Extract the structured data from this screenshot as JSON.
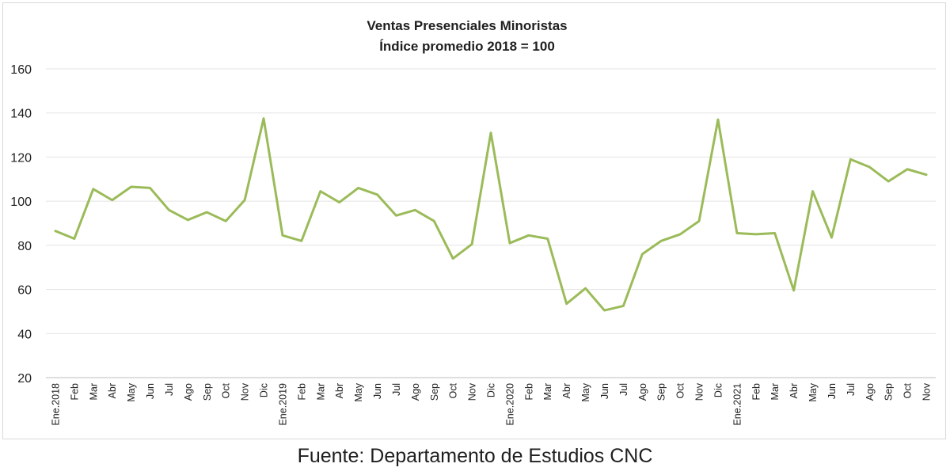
{
  "chart_data": {
    "type": "line",
    "title": "Ventas Presenciales Minoristas",
    "subtitle": "Índice promedio 2018 = 100",
    "xlabel": "",
    "ylabel": "",
    "ylim": [
      20,
      160
    ],
    "yticks": [
      20,
      40,
      60,
      80,
      100,
      120,
      140,
      160
    ],
    "grid": true,
    "legend": "none",
    "categories": [
      "Ene.2018",
      "Feb",
      "Mar",
      "Abr",
      "May",
      "Jun",
      "Jul",
      "Ago",
      "Sep",
      "Oct",
      "Nov",
      "Dic",
      "Ene.2019",
      "Feb",
      "Mar",
      "Abr",
      "May",
      "Jun",
      "Jul",
      "Ago",
      "Sep",
      "Oct",
      "Nov",
      "Dic",
      "Ene.2020",
      "Feb",
      "Mar",
      "Abr",
      "May",
      "Jun",
      "Jul",
      "Ago",
      "Sep",
      "Oct",
      "Nov",
      "Dic",
      "Ene.2021",
      "Feb",
      "Mar",
      "Abr",
      "May",
      "Jun",
      "Jul",
      "Ago",
      "Sep",
      "Oct",
      "Nov"
    ],
    "series": [
      {
        "color": "#9bbb59",
        "values": [
          86.5,
          83,
          105.5,
          100.5,
          106.5,
          106,
          96,
          91.5,
          95,
          91,
          100.5,
          137.5,
          84.5,
          82,
          104.5,
          99.5,
          106,
          103,
          93.5,
          96,
          91,
          74,
          80.5,
          131,
          81,
          84.5,
          83,
          53.5,
          60.5,
          50.5,
          52.5,
          76,
          82,
          85,
          91,
          137,
          85.5,
          85,
          85.5,
          59.5,
          104.5,
          83.5,
          119,
          115.5,
          109,
          114.5,
          112
        ]
      }
    ]
  },
  "source_note": "Fuente: Departamento de Estudios CNC"
}
